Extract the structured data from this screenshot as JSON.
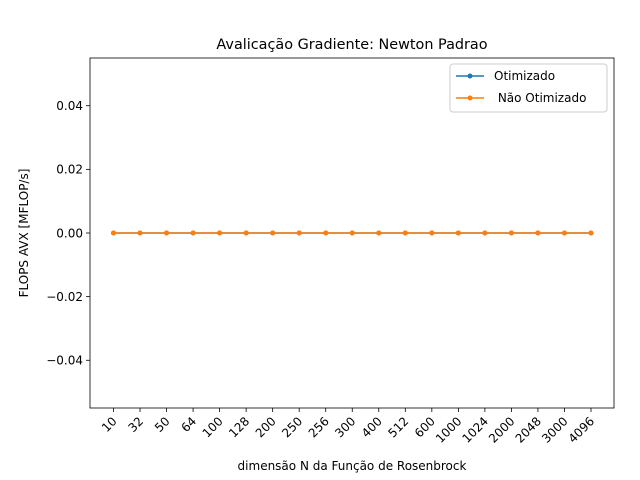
{
  "chart_data": {
    "type": "line",
    "title": "Avalicação Gradiente:  Newton Padrao",
    "xlabel": "dimensão N da Função de Rosenbrock",
    "ylabel": "FLOPS AVX [MFLOP/s]",
    "categories": [
      "10",
      "32",
      "50",
      "64",
      "100",
      "128",
      "200",
      "250",
      "256",
      "300",
      "400",
      "512",
      "600",
      "1000",
      "1024",
      "2000",
      "2048",
      "3000",
      "4096"
    ],
    "ylim": [
      -0.055,
      0.055
    ],
    "yticks": [
      -0.04,
      -0.02,
      0.0,
      0.02,
      0.04
    ],
    "ytick_labels": [
      "−0.04",
      "−0.02",
      "0.00",
      "0.02",
      "0.04"
    ],
    "grid": false,
    "legend_position": "top-right",
    "series": [
      {
        "name": "Otimizado",
        "color": "#1f77b4",
        "marker": "circle",
        "values": [
          0,
          0,
          0,
          0,
          0,
          0,
          0,
          0,
          0,
          0,
          0,
          0,
          0,
          0,
          0,
          0,
          0,
          0,
          0
        ]
      },
      {
        "name": " Não Otimizado",
        "color": "#ff7f0e",
        "marker": "circle",
        "values": [
          0,
          0,
          0,
          0,
          0,
          0,
          0,
          0,
          0,
          0,
          0,
          0,
          0,
          0,
          0,
          0,
          0,
          0,
          0
        ]
      }
    ]
  }
}
